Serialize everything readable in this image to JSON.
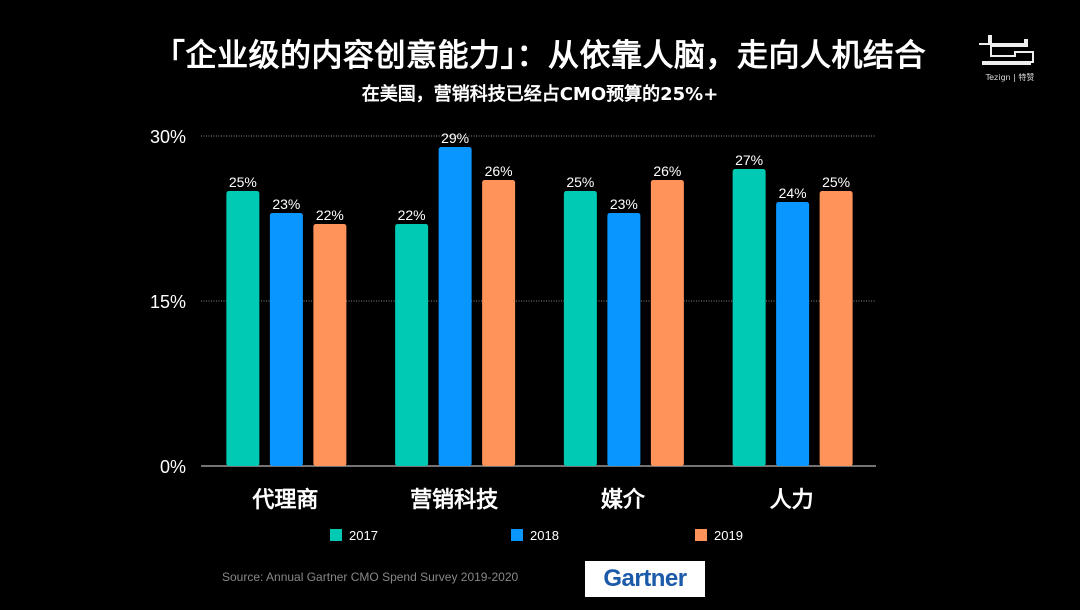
{
  "header": {
    "title": "「企业级的内容创意能力」：从依靠人脑，走向人机结合",
    "subtitle": "在美国，营销科技已经占CMO预算的25%+",
    "brand_logo_text": "Tezign | 特赞"
  },
  "footer": {
    "source": "Source: Annual Gartner CMO Spend Survey 2019-2020",
    "gartner_logo_text": "Gartner"
  },
  "chart_data": {
    "type": "bar",
    "title": "",
    "xlabel": "",
    "ylabel": "",
    "categories": [
      "代理商",
      "营销科技",
      "媒介",
      "人力"
    ],
    "series": [
      {
        "name": "2017",
        "color": "#00c9b4",
        "values": [
          25,
          22,
          25,
          27
        ]
      },
      {
        "name": "2018",
        "color": "#0996ff",
        "values": [
          23,
          29,
          23,
          24
        ]
      },
      {
        "name": "2019",
        "color": "#ff9359",
        "values": [
          22,
          26,
          26,
          25
        ]
      }
    ],
    "ylim": [
      0,
      30
    ],
    "yticks": [
      0,
      15,
      30
    ],
    "ytick_labels": [
      "0%",
      "15%",
      "30%"
    ],
    "value_suffix": "%",
    "grid": "dotted horizontal",
    "legend_position": "bottom"
  }
}
